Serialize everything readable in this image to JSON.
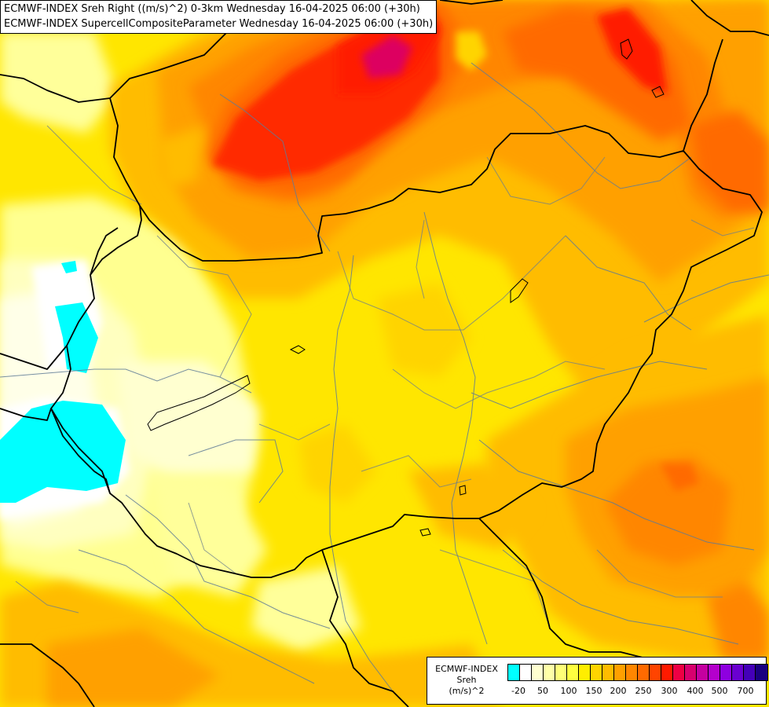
{
  "title": {
    "line1": "ECMWF-INDEX Sreh Right ((m/s)^2) 0-3km Wednesday 16-04-2025 06:00 (+30h)",
    "line2": "ECMWF-INDEX SupercellCompositeParameter Wednesday 16-04-2025 06:00 (+30h)"
  },
  "legend": {
    "title": [
      "ECMWF-INDEX",
      "Sreh",
      "(m/s)^2"
    ],
    "colors": [
      "#00ffff",
      "#ffffff",
      "#ffffd0",
      "#ffffa8",
      "#ffff78",
      "#ffff40",
      "#ffee00",
      "#ffd400",
      "#ffbc00",
      "#ffa000",
      "#ff8600",
      "#ff6a00",
      "#ff4400",
      "#ff1a00",
      "#ee0044",
      "#d8006e",
      "#c400a0",
      "#b400cc",
      "#8e00e0",
      "#6a00d0",
      "#4400b8",
      "#1a0080"
    ],
    "ticks": [
      "-20",
      "50",
      "100",
      "150",
      "200",
      "250",
      "300",
      "400",
      "500",
      "700"
    ]
  }
}
